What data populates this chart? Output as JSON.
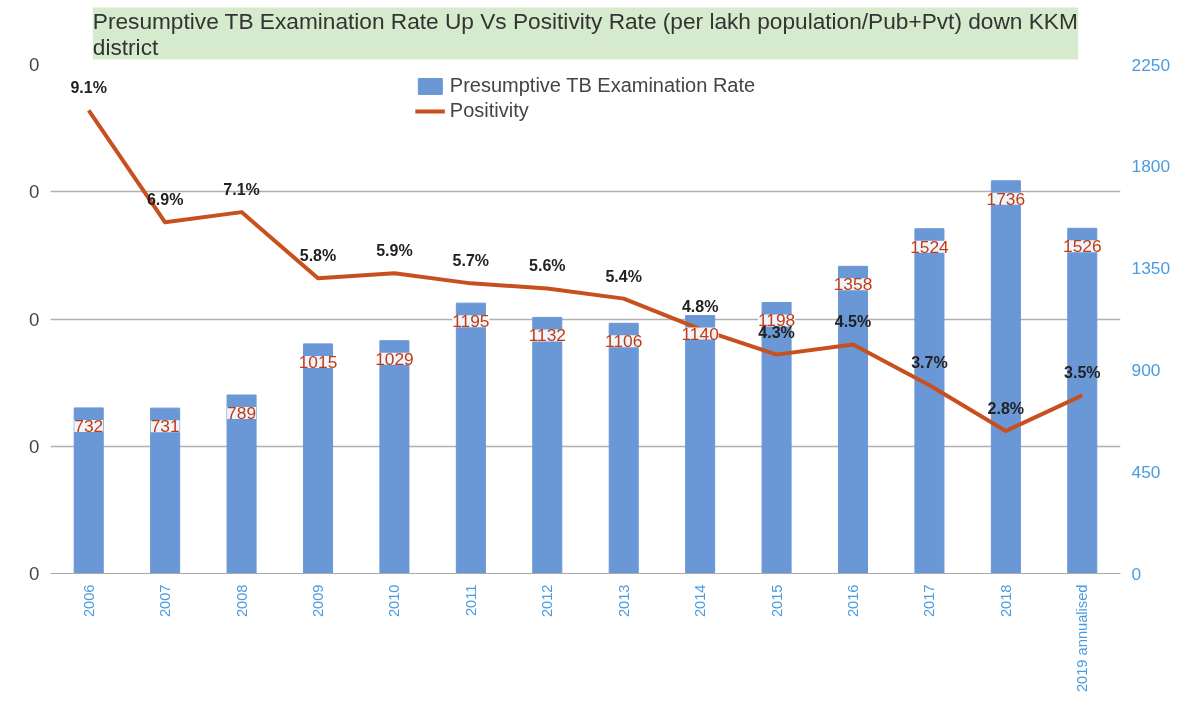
{
  "chart_data": {
    "type": "bar",
    "title": "Presumptive TB Examination Rate Up Vs Positivity Rate (per lakh population/Pub+Pvt) down KKM district",
    "categories": [
      "2006",
      "2007",
      "2008",
      "2009",
      "2010",
      "2011",
      "2012",
      "2013",
      "2014",
      "2015",
      "2016",
      "2017",
      "2018",
      "2019 annualised"
    ],
    "series": [
      {
        "name": "Presumptive TB Examination Rate",
        "axis": "y2",
        "color": "#6a97d6",
        "values": [
          732,
          731,
          789,
          1015,
          1029,
          1195,
          1132,
          1106,
          1140,
          1198,
          1358,
          1524,
          1736,
          1526
        ],
        "value_labels": [
          "732",
          "731",
          "789",
          "1015",
          "1029",
          "1195",
          "1132",
          "1106",
          "1140",
          "1198",
          "1358",
          "1524",
          "1736",
          "1526"
        ]
      },
      {
        "name": "Positivity",
        "type": "line",
        "color": "#c8501e",
        "values": [
          0.091,
          0.069,
          0.071,
          0.058,
          0.059,
          0.057,
          0.056,
          0.054,
          0.048,
          0.043,
          0.045,
          0.037,
          0.028,
          0.035
        ],
        "value_labels": [
          "9.1%",
          "6.9%",
          "7.1%",
          "5.8%",
          "5.9%",
          "5.7%",
          "5.6%",
          "5.4%",
          "4.8%",
          "4.3%",
          "4.5%",
          "3.7%",
          "2.8%",
          "3.5%"
        ]
      }
    ],
    "ylim": [
      0,
      0.1
    ],
    "yticks": [
      0,
      {
        "value": 0.025,
        "label": "0"
      },
      {
        "value": 0.05,
        "label": "0"
      },
      {
        "value": 0.075,
        "label": "0"
      },
      {
        "value": 0.1,
        "label": "0"
      }
    ],
    "y2lim": [
      0,
      2250
    ],
    "y2ticks": [
      0,
      450,
      900,
      1350,
      1800,
      2250
    ],
    "grid": "y",
    "legend": "top",
    "marker": "none",
    "line_style": "solid"
  }
}
